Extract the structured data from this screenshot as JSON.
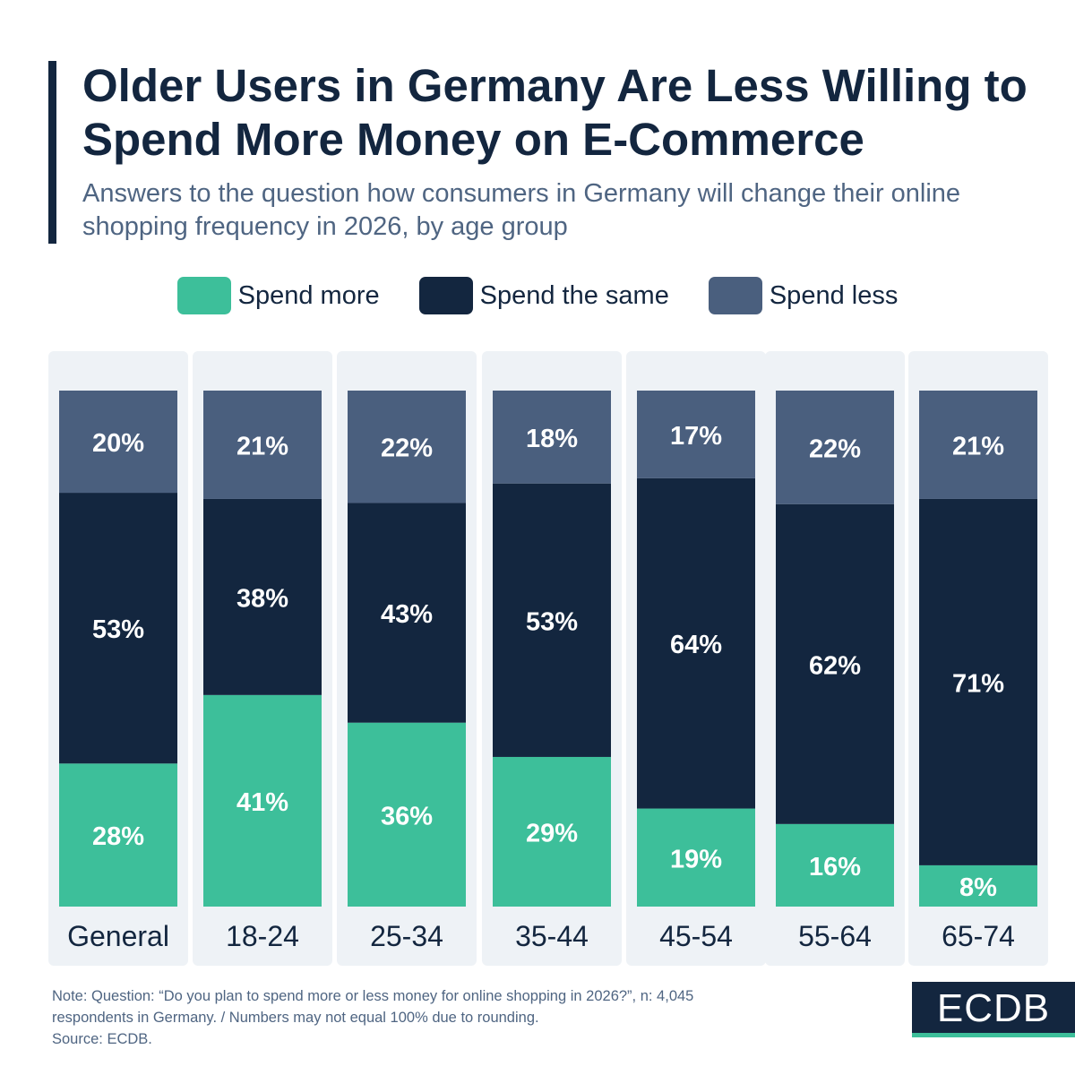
{
  "header": {
    "title": "Older Users in Germany Are Less Willing to Spend More Money on E-Commerce",
    "subtitle": "Answers to the question how consumers in Germany will change their online shopping frequency in 2026, by age group"
  },
  "legend": [
    {
      "label": "Spend more",
      "color": "#3dbf9a"
    },
    {
      "label": "Spend the same",
      "color": "#13263f"
    },
    {
      "label": "Spend less",
      "color": "#4a5f7e"
    }
  ],
  "chart_data": {
    "type": "bar",
    "stacked": true,
    "title": "Older Users in Germany Are Less Willing to Spend More Money on E-Commerce",
    "xlabel": "",
    "ylabel": "",
    "ylim": [
      0,
      100
    ],
    "categories": [
      "General",
      "18-24",
      "25-34",
      "35-44",
      "45-54",
      "55-64",
      "65-74"
    ],
    "series": [
      {
        "name": "Spend more",
        "color": "#3dbf9a",
        "values": [
          28,
          41,
          36,
          29,
          19,
          16,
          8
        ]
      },
      {
        "name": "Spend the same",
        "color": "#13263f",
        "values": [
          53,
          38,
          43,
          53,
          64,
          62,
          71
        ]
      },
      {
        "name": "Spend less",
        "color": "#4a5f7e",
        "values": [
          20,
          21,
          22,
          18,
          17,
          22,
          21
        ]
      }
    ],
    "data_labels": [
      [
        "28%",
        "41%",
        "36%",
        "29%",
        "19%",
        "16%",
        "8%"
      ],
      [
        "53%",
        "38%",
        "43%",
        "53%",
        "64%",
        "62%",
        "71%"
      ],
      [
        "20%",
        "21%",
        "22%",
        "18%",
        "17%",
        "22%",
        "21%"
      ]
    ]
  },
  "footer": {
    "note_line1": "Note: Question: “Do you plan to spend more or less money for online shopping in 2026?”, n: 4,045",
    "note_line2": "respondents in Germany. / Numbers may not equal 100% due to rounding.",
    "source": "Source: ECDB.",
    "logo": "ECDB"
  }
}
